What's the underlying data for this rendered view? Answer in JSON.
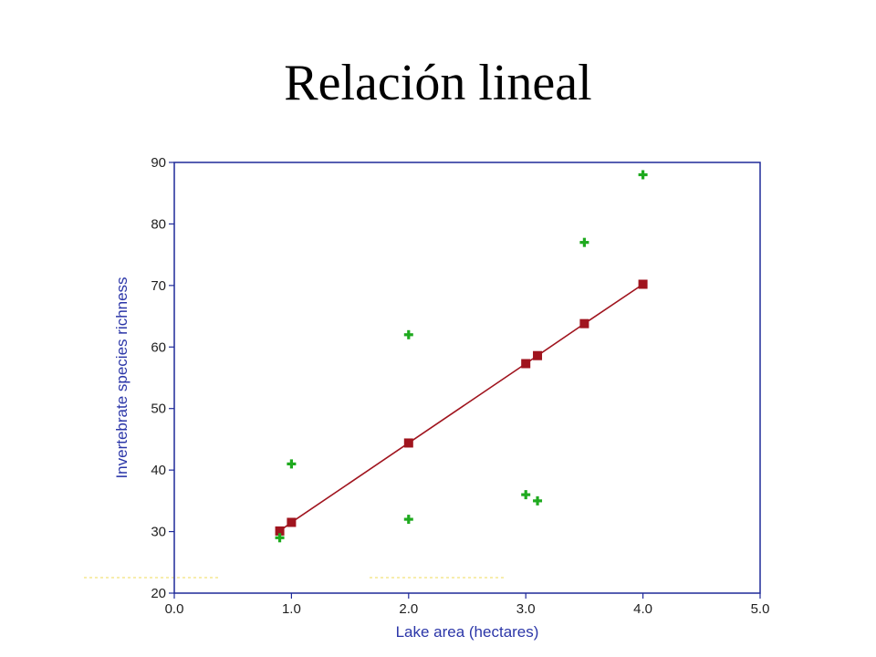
{
  "slide": {
    "title": "Relación lineal"
  },
  "colors": {
    "frame": "#1f2a99",
    "axis_label": "#2b36a8",
    "tick_label": "#1f1f1f",
    "observed": "#1faa1f",
    "fitted": "#a0141e",
    "dotted_artifact": "#f2e27a"
  },
  "chart_data": {
    "type": "scatter",
    "title": "",
    "xlabel": "Lake area (hectares)",
    "ylabel": "Invertebrate species richness",
    "xlim": [
      0,
      5
    ],
    "ylim": [
      20,
      90
    ],
    "xticks": [
      0,
      1,
      2,
      3,
      4,
      5
    ],
    "xtick_labels": [
      "0.0",
      "1.0",
      "2.0",
      "3.0",
      "4.0",
      "5.0"
    ],
    "yticks": [
      20,
      30,
      40,
      50,
      60,
      70,
      80,
      90
    ],
    "ytick_labels": [
      "20",
      "30",
      "40",
      "50",
      "60",
      "70",
      "80",
      "90"
    ],
    "grid": false,
    "legend": false,
    "series": [
      {
        "marker": "plus",
        "x": [
          0.9,
          1.0,
          2.0,
          2.0,
          3.0,
          3.1,
          3.5,
          4.0
        ],
        "y": [
          29,
          41,
          62,
          32,
          36,
          35,
          77,
          88
        ]
      },
      {
        "marker": "square",
        "line": true,
        "x": [
          0.9,
          1.0,
          2.0,
          3.0,
          3.1,
          3.5,
          4.0
        ],
        "y": [
          30.1,
          31.5,
          44.4,
          57.3,
          58.6,
          63.8,
          70.2
        ]
      }
    ]
  }
}
